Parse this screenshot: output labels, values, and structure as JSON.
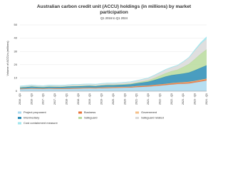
{
  "chart_data": {
    "type": "stacked_area",
    "title": [
      "Australian carbon credit unit (ACCU) holdings (in millions) by market",
      "participation"
    ],
    "subtitle": "Q1 2016 to Q1 2024",
    "y_label": "Volume of ACCUs (millions)",
    "categories": [
      "2016 - Q1",
      null,
      "2016 - Q3",
      null,
      "2017 - Q1",
      null,
      "2017 - Q3",
      null,
      "2018 - Q1",
      null,
      "2018 - Q3",
      null,
      "2019 - Q1",
      null,
      "2019 - Q3",
      null,
      "2020 - Q1",
      null,
      "2020 - Q3",
      null,
      "2021 - Q1",
      null,
      "2021 - Q3",
      null,
      "2022 - Q1",
      null,
      "2022 - Q3",
      null,
      "2023 - Q1",
      null,
      "2023 - Q3",
      null,
      "2024 - Q1"
    ],
    "ylim": [
      0,
      50
    ],
    "yticks": [
      0,
      10,
      20,
      30,
      40,
      50
    ],
    "grid": true,
    "legend": "bottom",
    "series": [
      {
        "name": "Project proponent",
        "color": "#a9d8ef",
        "values": [
          1.5,
          1.6,
          1.8,
          1.7,
          1.6,
          1.8,
          1.7,
          1.6,
          1.7,
          1.8,
          1.9,
          2.0,
          2.1,
          2.0,
          2.2,
          2.3,
          2.4,
          2.5,
          2.6,
          2.7,
          3.0,
          3.2,
          3.4,
          3.8,
          4.2,
          4.6,
          5.0,
          5.4,
          5.6,
          5.8,
          6.5,
          7.2,
          8.0
        ]
      },
      {
        "name": "Business",
        "color": "#e8733a",
        "values": [
          0.3,
          0.3,
          0.3,
          0.3,
          0.3,
          0.3,
          0.4,
          0.4,
          0.4,
          0.4,
          0.4,
          0.4,
          0.4,
          0.4,
          0.5,
          0.5,
          0.5,
          0.5,
          0.5,
          0.5,
          0.6,
          0.6,
          0.6,
          0.7,
          0.7,
          0.7,
          0.8,
          0.8,
          0.8,
          0.9,
          0.9,
          1.0,
          1.0
        ]
      },
      {
        "name": "Government",
        "color": "#f5c08a",
        "values": [
          0.2,
          0.2,
          0.2,
          0.2,
          0.2,
          0.2,
          0.2,
          0.2,
          0.2,
          0.2,
          0.2,
          0.2,
          0.2,
          0.2,
          0.2,
          0.2,
          0.2,
          0.2,
          0.2,
          0.2,
          0.3,
          0.3,
          0.3,
          0.3,
          0.3,
          0.3,
          0.3,
          0.3,
          0.4,
          0.4,
          0.4,
          0.5,
          0.5
        ]
      },
      {
        "name": "Intermediary",
        "color": "#2a8cb5",
        "values": [
          0.8,
          1.0,
          1.2,
          1.0,
          0.9,
          1.1,
          1.0,
          1.0,
          1.1,
          1.2,
          1.2,
          1.3,
          1.3,
          1.2,
          1.4,
          1.5,
          1.4,
          1.5,
          1.6,
          1.8,
          2.0,
          2.4,
          2.8,
          3.5,
          4.5,
          5.5,
          6.0,
          6.2,
          6.5,
          7.0,
          8.0,
          9.0,
          10.0
        ]
      },
      {
        "name": "Safeguard",
        "color": "#b9da9c",
        "values": [
          0.2,
          0.2,
          0.2,
          0.2,
          0.2,
          0.2,
          0.2,
          0.2,
          0.3,
          0.3,
          0.3,
          0.3,
          0.3,
          0.3,
          0.3,
          0.4,
          0.4,
          0.4,
          0.5,
          0.5,
          0.6,
          0.8,
          1.0,
          1.5,
          2.0,
          2.5,
          3.0,
          3.5,
          5.0,
          6.5,
          8.5,
          10.5,
          12.0
        ]
      },
      {
        "name": "Safeguard related",
        "color": "#d9d9d9",
        "values": [
          0.8,
          0.9,
          1.0,
          0.9,
          0.9,
          1.0,
          1.0,
          1.0,
          1.0,
          1.1,
          1.1,
          1.1,
          1.1,
          1.1,
          1.2,
          1.2,
          1.2,
          1.3,
          1.3,
          1.4,
          1.5,
          1.7,
          1.9,
          2.2,
          2.5,
          2.8,
          3.0,
          3.3,
          4.0,
          5.0,
          6.5,
          7.5,
          8.0
        ]
      },
      {
        "name": "Cost containment measure",
        "color": "#9ee6ee",
        "values": [
          0,
          0,
          0,
          0,
          0,
          0,
          0,
          0,
          0,
          0,
          0,
          0,
          0,
          0,
          0,
          0,
          0,
          0,
          0,
          0,
          0,
          0,
          0,
          0,
          0,
          0,
          0,
          0,
          0,
          0,
          0.5,
          1.0,
          1.5
        ]
      }
    ]
  }
}
